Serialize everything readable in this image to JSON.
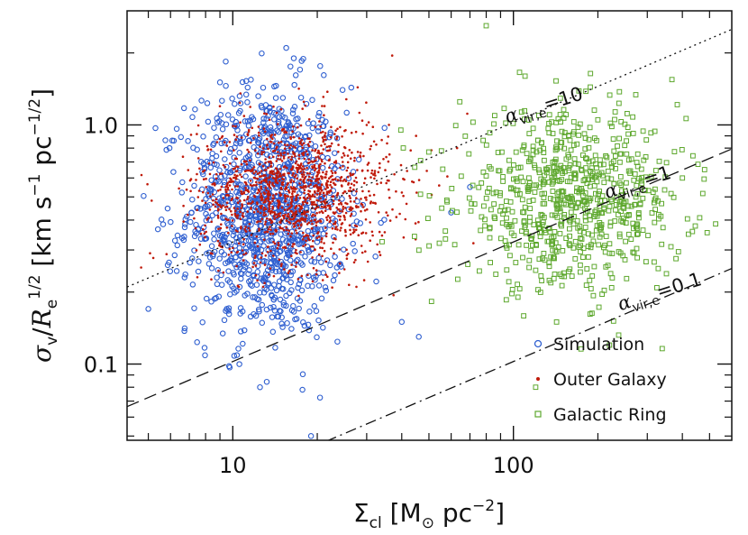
{
  "chart_data": {
    "type": "scatter",
    "x_scale": "log",
    "y_scale": "log",
    "xlim": [
      4.2,
      600
    ],
    "ylim": [
      0.048,
      3.0
    ],
    "xlabel": {
      "main": "Σ",
      "sub": "cl",
      "bracket_open": "[",
      "unit": "M",
      "sun": "⊙",
      "unit2": " pc",
      "exp": "−2",
      "bracket_close": "]"
    },
    "ylabel": {
      "main": "σ",
      "sub": "v",
      "slash": "/",
      "R": "R",
      "Rsub": "e",
      "Rexp": "1/2",
      "units": "[km s",
      "e1": "−1",
      "pc": " pc",
      "e2": "−1/2",
      "close": "]"
    },
    "x_ticks": [
      {
        "value": 10,
        "label": "10"
      },
      {
        "value": 100,
        "label": "100"
      }
    ],
    "y_ticks": [
      {
        "value": 0.1,
        "label": "0.1"
      },
      {
        "value": 1.0,
        "label": "1.0"
      }
    ],
    "lines": [
      {
        "name": "alpha_vir_10",
        "alpha": 10,
        "style": "dotted",
        "label": "α",
        "sub": "vir,e",
        "eq": "=10"
      },
      {
        "name": "alpha_vir_1",
        "alpha": 1,
        "style": "dashed",
        "label": "α",
        "sub": "vir,e",
        "eq": "=1"
      },
      {
        "name": "alpha_vir_0.1",
        "alpha": 0.1,
        "style": "dashdot",
        "label": "α",
        "sub": "vir,e",
        "eq": "=0.1"
      }
    ],
    "series": [
      {
        "name": "Simulation",
        "marker": "open-circle",
        "color": "#2f5fd0",
        "n_points": 1150,
        "x_center_log10": 1.12,
        "x_sd_log10": 0.14,
        "y_center_log10": -0.36,
        "y_sd_log10": 0.26,
        "sample_points": [
          [
            5,
            0.17
          ],
          [
            5.3,
            0.97
          ],
          [
            9.7,
            0.098
          ],
          [
            12.5,
            0.08
          ],
          [
            15.5,
            2.1
          ],
          [
            16.5,
            1.9
          ],
          [
            19,
            0.05
          ],
          [
            40,
            0.15
          ],
          [
            46,
            0.13
          ],
          [
            60,
            0.43
          ],
          [
            70,
            0.55
          ]
        ]
      },
      {
        "name": "Outer Galaxy",
        "marker": "dot",
        "color": "#c01a0a",
        "n_points": 1400,
        "x_center_log10": 1.22,
        "x_sd_log10": 0.17,
        "y_center_log10": -0.28,
        "y_sd_log10": 0.15,
        "sample_points": [
          [
            12,
            0.5
          ],
          [
            20,
            0.55
          ],
          [
            30,
            1.0
          ],
          [
            37,
            1.95
          ],
          [
            45,
            0.9
          ],
          [
            63,
            0.8
          ],
          [
            72,
            0.32
          ]
        ]
      },
      {
        "name": "Galactic Ring",
        "marker": "open-square",
        "color": "#5ea82e",
        "n_points": 750,
        "x_center_log10": 2.2,
        "x_sd_log10": 0.2,
        "y_center_log10": -0.32,
        "y_sd_log10": 0.18,
        "sample_points": [
          [
            80,
            2.6
          ],
          [
            110,
            1.6
          ],
          [
            120,
            0.08
          ],
          [
            200,
            1.05
          ],
          [
            220,
            0.12
          ],
          [
            400,
            0.6
          ],
          [
            480,
            0.65
          ]
        ]
      }
    ],
    "legend": {
      "position": "bottom-right",
      "items": [
        {
          "label": "Simulation",
          "marker": "open-circle",
          "color": "#2f5fd0"
        },
        {
          "label": "Outer Galaxy",
          "marker": "dot",
          "color": "#c01a0a"
        },
        {
          "label": "Galactic Ring",
          "marker": "open-square",
          "color": "#5ea82e"
        }
      ]
    }
  }
}
